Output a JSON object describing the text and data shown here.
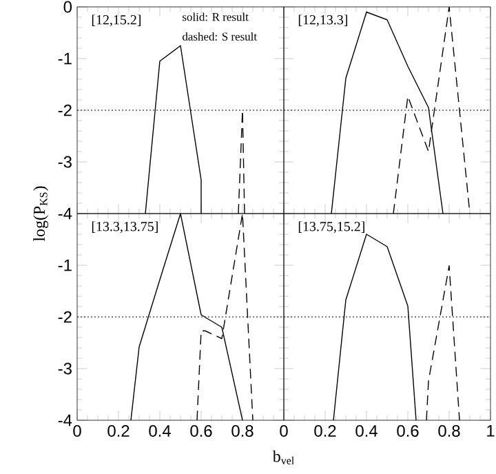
{
  "chart_data": [
    {
      "type": "line",
      "xlim": [
        0,
        1
      ],
      "ylim": [
        -4,
        0
      ],
      "xticks": [
        0,
        0.2,
        0.4,
        0.6,
        0.8,
        1
      ],
      "yticks": [
        0,
        -1,
        -2,
        -3,
        -4
      ],
      "tick_labels": "y",
      "ylabel": "log(P$_{KS}$)",
      "annotations": [
        "[12,15.2]",
        "solid: R result",
        "dashed: S result"
      ],
      "ref_lines": [
        {
          "axis": "y",
          "value": -2,
          "line_style": "dotted",
          "color": "#000000"
        }
      ],
      "series": [
        {
          "color": "#000000",
          "line_style": "solid",
          "x": [
            0.33,
            0.4,
            0.5,
            0.6,
            0.6
          ],
          "values": [
            -4,
            -1.05,
            -0.75,
            -3.35,
            -4
          ]
        },
        {
          "color": "#000000",
          "line_style": "dashed",
          "x": [
            0.78,
            0.8,
            0.81
          ],
          "values": [
            -4,
            -2,
            -4
          ]
        }
      ]
    },
    {
      "type": "line",
      "xlim": [
        0,
        1
      ],
      "ylim": [
        -4,
        0
      ],
      "xticks": [
        0,
        0.2,
        0.4,
        0.6,
        0.8,
        1
      ],
      "yticks": [
        0,
        -1,
        -2,
        -3,
        -4
      ],
      "tick_labels": false,
      "annotations": [
        "[12,13.3]"
      ],
      "ref_lines": [
        {
          "axis": "y",
          "value": -2,
          "line_style": "dotted",
          "color": "#000000"
        }
      ],
      "series": [
        {
          "color": "#000000",
          "line_style": "solid",
          "x": [
            0.23,
            0.3,
            0.4,
            0.5,
            0.6,
            0.7,
            0.77
          ],
          "values": [
            -4,
            -1.38,
            -0.1,
            -0.25,
            -1.15,
            -1.95,
            -4
          ]
        },
        {
          "color": "#000000",
          "line_style": "dashed",
          "x": [
            0.53,
            0.6,
            0.7,
            0.8,
            0.9
          ],
          "values": [
            -4,
            -1.73,
            -2.8,
            0,
            -4
          ]
        }
      ]
    },
    {
      "type": "line",
      "xlim": [
        0,
        1
      ],
      "ylim": [
        -4,
        0
      ],
      "xticks": [
        0,
        0.2,
        0.4,
        0.6,
        0.8,
        {
          "value": 1,
          "label": null
        }
      ],
      "yticks": [
        {
          "value": 0,
          "label": null
        },
        -1,
        -2,
        -3,
        -4
      ],
      "annotations": [
        "[13.3,13.75]"
      ],
      "ref_lines": [
        {
          "axis": "y",
          "value": -2,
          "line_style": "dotted",
          "color": "#000000"
        }
      ],
      "series": [
        {
          "color": "#000000",
          "line_style": "solid",
          "x": [
            0.26,
            0.3,
            0.4,
            0.5,
            0.6,
            0.7,
            0.8
          ],
          "values": [
            -4,
            -2.58,
            -1.28,
            0,
            -1.96,
            -2.2,
            -4
          ]
        },
        {
          "color": "#000000",
          "line_style": "dashed",
          "x": [
            0.58,
            0.6,
            0.62,
            0.7,
            0.8,
            0.85
          ],
          "values": [
            -4,
            -2.27,
            -2.27,
            -2.42,
            0,
            -4
          ]
        }
      ]
    },
    {
      "type": "line",
      "xlim": [
        0,
        1
      ],
      "ylim": [
        -4,
        0
      ],
      "xticks": [
        0,
        0.2,
        0.4,
        0.6,
        0.8,
        1
      ],
      "yticks": [
        0,
        -1,
        -2,
        -3,
        -4
      ],
      "tick_labels": "x",
      "xlabel": "b$_{vel}$",
      "annotations": [
        "[13.75,15.2]"
      ],
      "ref_lines": [
        {
          "axis": "y",
          "value": -2,
          "line_style": "dotted",
          "color": "#000000"
        }
      ],
      "series": [
        {
          "color": "#000000",
          "line_style": "solid",
          "x": [
            0.24,
            0.3,
            0.4,
            0.5,
            0.6,
            0.64
          ],
          "values": [
            -4,
            -1.67,
            -0.4,
            -0.64,
            -1.79,
            -4
          ]
        },
        {
          "color": "#000000",
          "line_style": "dashed",
          "x": [
            0.69,
            0.7,
            0.8,
            0.85
          ],
          "values": [
            -4,
            -3.24,
            -1.01,
            -4
          ]
        }
      ]
    }
  ]
}
